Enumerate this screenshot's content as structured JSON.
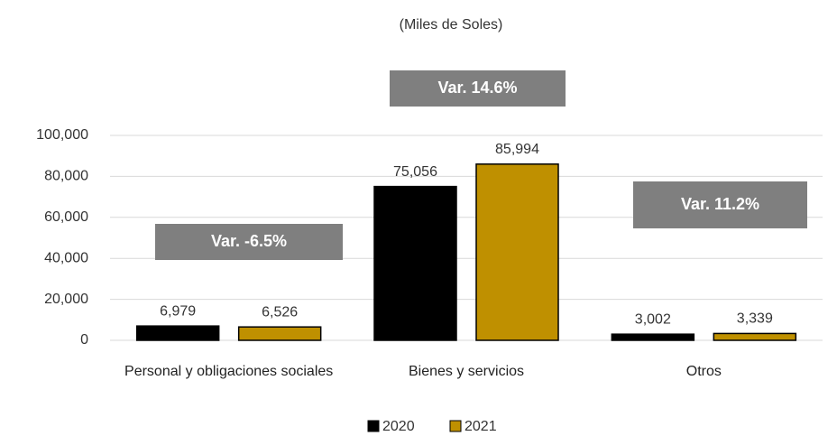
{
  "chart_data": {
    "type": "bar",
    "subtitle": "(Miles de Soles)",
    "categories": [
      "Personal y obligaciones sociales",
      "Bienes y servicios",
      "Otros"
    ],
    "series": [
      {
        "name": "2020",
        "color": "#000000",
        "values": [
          6979,
          75056,
          3002
        ],
        "value_labels": [
          "6,979",
          "75,056",
          "3,002"
        ]
      },
      {
        "name": "2021",
        "color": "#bf9000",
        "values": [
          6526,
          85994,
          3339
        ],
        "value_labels": [
          "6,526",
          "85,994",
          "3,339"
        ]
      }
    ],
    "annotations": [
      "Var. -6.5%",
      "Var. 14.6%",
      "Var. 11.2%"
    ],
    "ylim": [
      0,
      100000
    ],
    "yticks": [
      0,
      {
        "value": 20000,
        "label": "20,000"
      },
      {
        "value": 40000,
        "label": "40,000"
      },
      {
        "value": 60000,
        "label": "60,000"
      },
      {
        "value": 80000,
        "label": "80,000"
      },
      {
        "value": 100000,
        "label": "100,000"
      }
    ],
    "grid": true,
    "legend": "bottom"
  }
}
